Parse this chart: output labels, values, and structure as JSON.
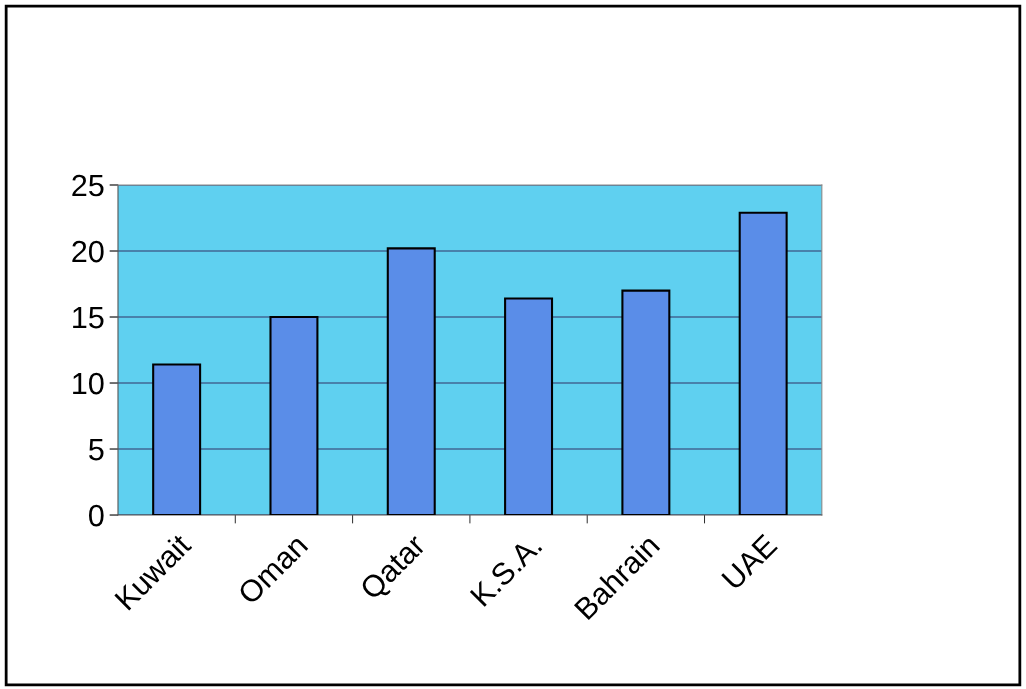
{
  "chart_data": {
    "type": "bar",
    "categories": [
      "Kuwait",
      "Oman",
      "Qatar",
      "K.S.A.",
      "Bahrain",
      "UAE"
    ],
    "values": [
      11.4,
      15.0,
      20.2,
      16.4,
      17.0,
      22.9
    ],
    "color": "#5a8de8",
    "ylim": [
      0,
      25
    ],
    "yticks": [
      0,
      5,
      10,
      15,
      20,
      25
    ],
    "grid": "y"
  }
}
